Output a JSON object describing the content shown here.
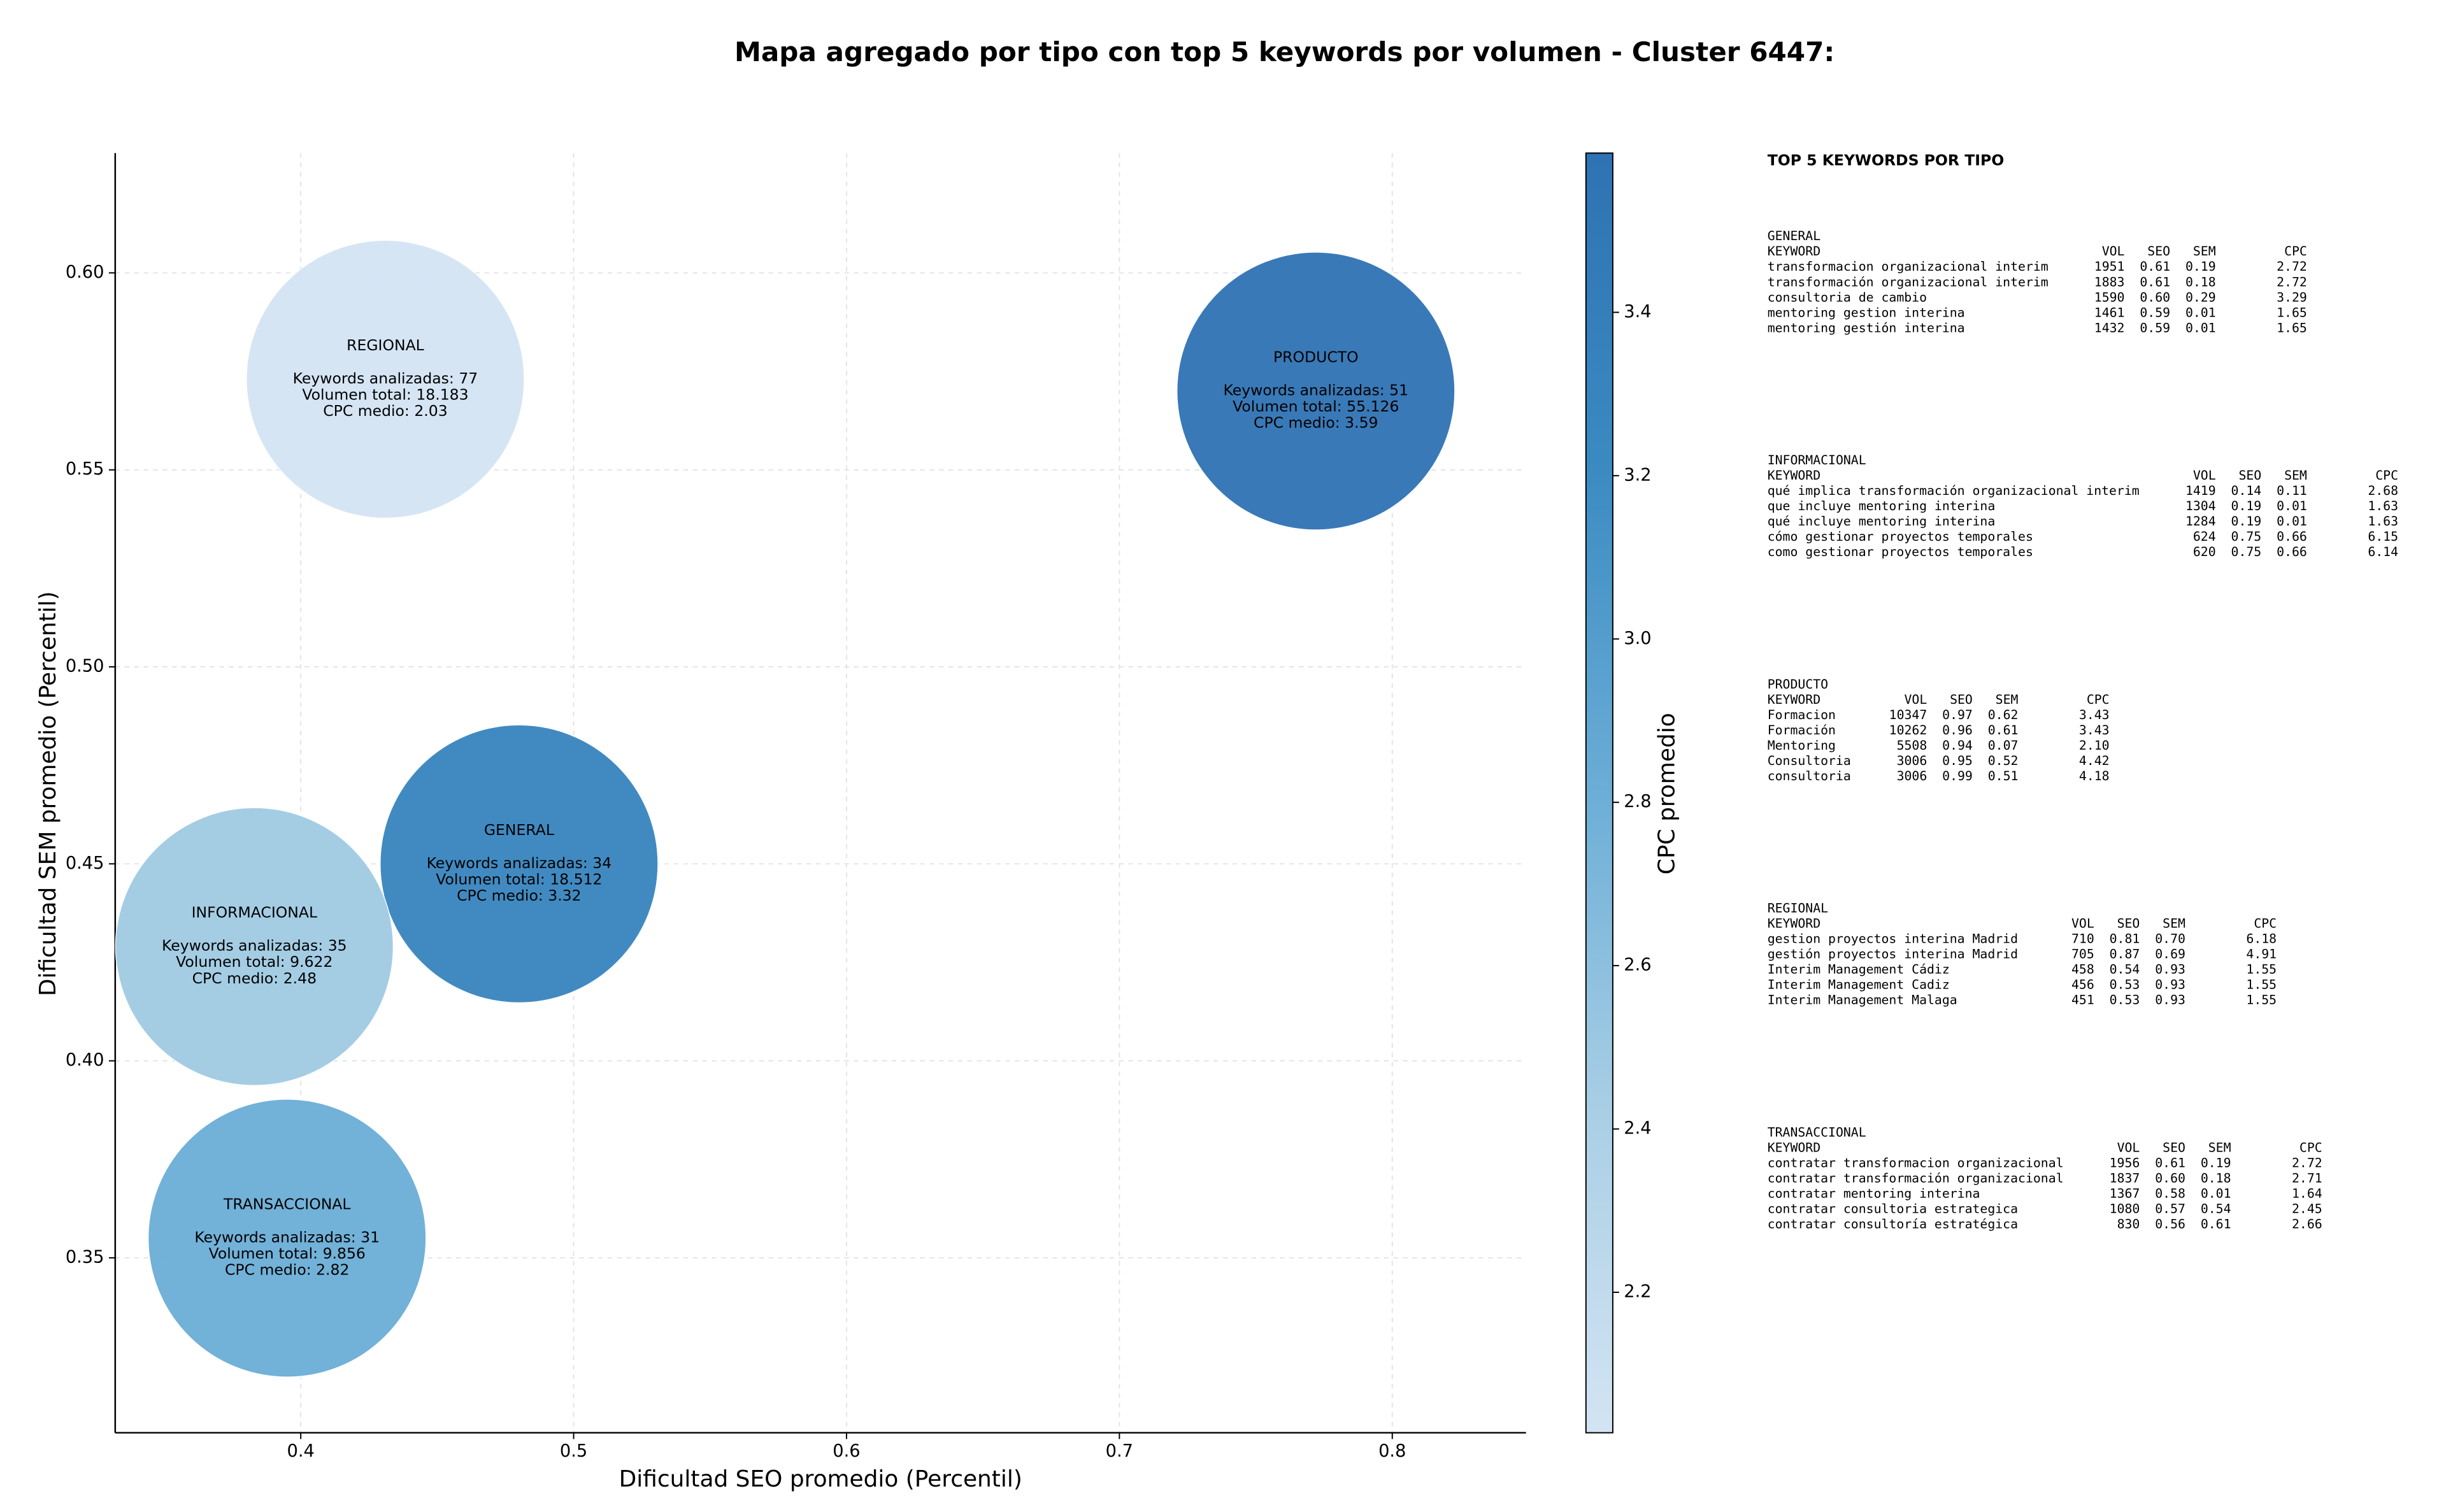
{
  "chart_data": {
    "type": "bubble",
    "title": "Mapa agregado por tipo con top 5 keywords por volumen - Cluster 6447:",
    "x_label": "Dificultad SEO promedio (Percentil)",
    "y_label": "Dificultad SEM promedio (Percentil)",
    "colorbar_label": "CPC promedio",
    "categories": [
      "REGIONAL",
      "PRODUCTO",
      "GENERAL",
      "INFORMACIONAL",
      "TRANSACCIONAL"
    ],
    "x": [
      0.431,
      0.772,
      0.48,
      0.383,
      0.395
    ],
    "values": [
      0.573,
      0.57,
      0.45,
      0.429,
      0.355
    ],
    "color_values": [
      2.03,
      3.59,
      3.32,
      2.48,
      2.82
    ],
    "bubble_labels": [
      [
        "Keywords analizadas: 77",
        "Volumen total: 18.183",
        "CPC medio: 2.03"
      ],
      [
        "Keywords analizadas: 51",
        "Volumen total: 55.126",
        "CPC medio: 3.59"
      ],
      [
        "Keywords analizadas: 34",
        "Volumen total: 18.512",
        "CPC medio: 3.32"
      ],
      [
        "Keywords analizadas: 35",
        "Volumen total: 9.622",
        "CPC medio: 2.48"
      ],
      [
        "Keywords analizadas: 31",
        "Volumen total: 9.856",
        "CPC medio: 2.82"
      ]
    ],
    "xlim": [
      0.332,
      0.849
    ],
    "xticks": [
      0.4,
      0.5,
      0.6,
      0.7,
      0.8
    ],
    "ylim": [
      0.3056,
      0.6304
    ],
    "yticks": [
      0.35,
      {
        "value": 0.4,
        "label": "0.40"
      },
      0.45,
      {
        "value": 0.5,
        "label": "0.50"
      },
      0.55,
      {
        "value": 0.6,
        "label": "0.60"
      }
    ],
    "clim": [
      2.028,
      3.595
    ],
    "cticks": [
      2.2,
      2.4,
      2.6,
      2.8,
      {
        "value": 3,
        "label": "3.0"
      },
      3.2,
      3.4
    ],
    "colormap": [
      "#d3e4f3",
      "#a9cfe5",
      "#6baed6",
      "#3b8bc2",
      "#2e72b3"
    ],
    "grid": true
  },
  "side_panel": {
    "title": "TOP 5 KEYWORDS POR TIPO",
    "columns": [
      "KEYWORD",
      "VOL",
      "SEO",
      "SEM",
      "CPC"
    ],
    "sections": [
      {
        "name": "GENERAL",
        "rows": [
          [
            "transformacion organizacional interim",
            "1951",
            "0.61",
            "0.19",
            "2.72"
          ],
          [
            "transformación organizacional interim",
            "1883",
            "0.61",
            "0.18",
            "2.72"
          ],
          [
            "consultoria de cambio",
            "1590",
            "0.60",
            "0.29",
            "3.29"
          ],
          [
            "mentoring gestion interina",
            "1461",
            "0.59",
            "0.01",
            "1.65"
          ],
          [
            "mentoring gestión interina",
            "1432",
            "0.59",
            "0.01",
            "1.65"
          ]
        ]
      },
      {
        "name": "INFORMACIONAL",
        "rows": [
          [
            "qué implica transformación organizacional interim",
            "1419",
            "0.14",
            "0.11",
            "2.68"
          ],
          [
            "que incluye mentoring interina",
            "1304",
            "0.19",
            "0.01",
            "1.63"
          ],
          [
            "qué incluye mentoring interina",
            "1284",
            "0.19",
            "0.01",
            "1.63"
          ],
          [
            "cómo gestionar proyectos temporales",
            "624",
            "0.75",
            "0.66",
            "6.15"
          ],
          [
            "como gestionar proyectos temporales",
            "620",
            "0.75",
            "0.66",
            "6.14"
          ]
        ]
      },
      {
        "name": "PRODUCTO",
        "rows": [
          [
            "Formacion",
            "10347",
            "0.97",
            "0.62",
            "3.43"
          ],
          [
            "Formación",
            "10262",
            "0.96",
            "0.61",
            "3.43"
          ],
          [
            "Mentoring",
            "5508",
            "0.94",
            "0.07",
            "2.10"
          ],
          [
            "Consultoria",
            "3006",
            "0.95",
            "0.52",
            "4.42"
          ],
          [
            "consultoria",
            "3006",
            "0.99",
            "0.51",
            "4.18"
          ]
        ]
      },
      {
        "name": "REGIONAL",
        "rows": [
          [
            "gestion proyectos interina Madrid",
            "710",
            "0.81",
            "0.70",
            "6.18"
          ],
          [
            "gestión proyectos interina Madrid",
            "705",
            "0.87",
            "0.69",
            "4.91"
          ],
          [
            "Interim Management Cádiz",
            "458",
            "0.54",
            "0.93",
            "1.55"
          ],
          [
            "Interim Management Cadiz",
            "456",
            "0.53",
            "0.93",
            "1.55"
          ],
          [
            "Interim Management Malaga",
            "451",
            "0.53",
            "0.93",
            "1.55"
          ]
        ]
      },
      {
        "name": "TRANSACCIONAL",
        "rows": [
          [
            "contratar transformacion organizacional",
            "1956",
            "0.61",
            "0.19",
            "2.72"
          ],
          [
            "contratar transformación organizacional",
            "1837",
            "0.60",
            "0.18",
            "2.71"
          ],
          [
            "contratar mentoring interina",
            "1367",
            "0.58",
            "0.01",
            "1.64"
          ],
          [
            "contratar consultoria estrategica",
            "1080",
            "0.57",
            "0.54",
            "2.45"
          ],
          [
            "contratar consultoría estratégica",
            "830",
            "0.56",
            "0.61",
            "2.66"
          ]
        ]
      }
    ]
  }
}
